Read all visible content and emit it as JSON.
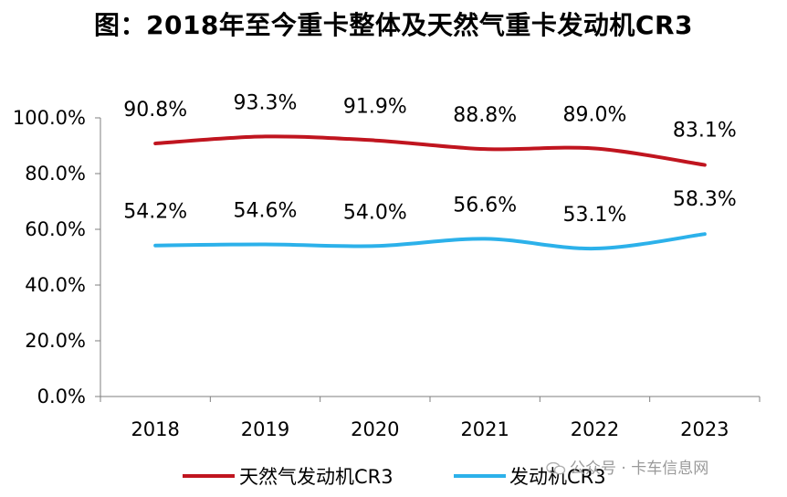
{
  "title": "图：2018年至今重卡整体及天然气重卡发动机CR3",
  "watermark": "公众号 · 卡车信息网",
  "chart_data": {
    "type": "line",
    "title": "图：2018年至今重卡整体及天然气重卡发动机CR3",
    "categories": [
      "2018",
      "2019",
      "2020",
      "2021",
      "2022",
      "2023"
    ],
    "ylim": [
      0,
      100
    ],
    "yticks": [
      "0.0%",
      "20.0%",
      "40.0%",
      "60.0%",
      "80.0%",
      "100.0%"
    ],
    "ytick_values": [
      0,
      20,
      40,
      60,
      80,
      100
    ],
    "grid": false,
    "legend_position": "bottom",
    "series": [
      {
        "name": "天然气发动机CR3",
        "color": "#C0151F",
        "values": [
          90.8,
          93.3,
          91.9,
          88.8,
          89.0,
          83.1
        ],
        "labels": [
          "90.8%",
          "93.3%",
          "91.9%",
          "88.8%",
          "89.0%",
          "83.1%"
        ]
      },
      {
        "name": "发动机CR3",
        "color": "#2CB1EA",
        "values": [
          54.2,
          54.6,
          54.0,
          56.6,
          53.1,
          58.3
        ],
        "labels": [
          "54.2%",
          "54.6%",
          "54.0%",
          "56.6%",
          "53.1%",
          "58.3%"
        ]
      }
    ]
  }
}
